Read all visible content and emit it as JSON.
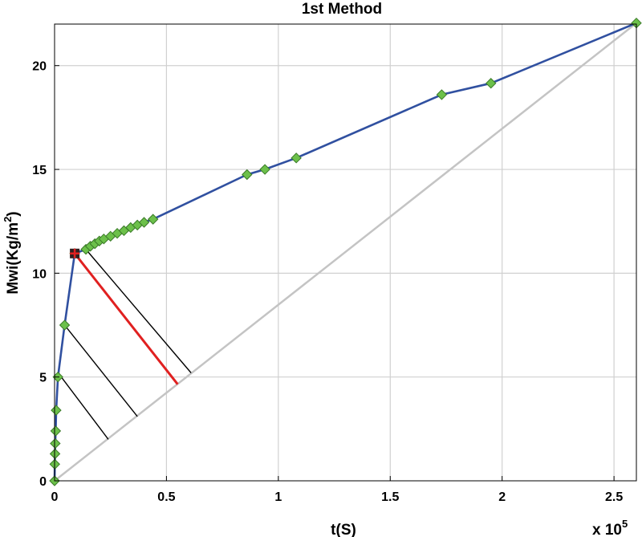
{
  "chart_data": {
    "type": "line",
    "title": "1st Method",
    "xlabel": "t(S)",
    "ylabel_main": "Mwi(Kg/m",
    "ylabel_sup": "2",
    "ylabel_end": ")",
    "x_multiplier_base": "x 10",
    "x_multiplier_exp": "5",
    "xlim": [
      0,
      2.6
    ],
    "ylim": [
      0,
      22
    ],
    "xticks": [
      0,
      0.5,
      1,
      1.5,
      2,
      2.5
    ],
    "xtick_labels": [
      "0",
      "0.5",
      "1",
      "1.5",
      "2",
      "2.5"
    ],
    "yticks": [
      0,
      5,
      10,
      15,
      20
    ],
    "ytick_labels": [
      "0",
      "5",
      "10",
      "15",
      "20"
    ],
    "grid": true,
    "colors": {
      "curve": "#3050a0",
      "marker_fill": "#6cc04a",
      "marker_edge": "#3a7a28",
      "diagonal": "#c4c4c4",
      "highlight": "#e02020",
      "projection": "#000000",
      "grid": "#d0d0d0"
    },
    "series": [
      {
        "values": [
          [
            0,
            0
          ],
          [
            0.001,
            0.8
          ],
          [
            0.002,
            1.3
          ],
          [
            0.003,
            1.8
          ],
          [
            0.005,
            2.4
          ],
          [
            0.007,
            3.4
          ],
          [
            0.015,
            5.0
          ],
          [
            0.045,
            7.5
          ],
          [
            0.09,
            10.95
          ],
          [
            0.14,
            11.15
          ],
          [
            0.16,
            11.3
          ],
          [
            0.18,
            11.42
          ],
          [
            0.2,
            11.55
          ],
          [
            0.22,
            11.65
          ],
          [
            0.25,
            11.78
          ],
          [
            0.28,
            11.92
          ],
          [
            0.31,
            12.05
          ],
          [
            0.34,
            12.2
          ],
          [
            0.37,
            12.32
          ],
          [
            0.4,
            12.45
          ],
          [
            0.44,
            12.6
          ],
          [
            0.86,
            14.75
          ],
          [
            0.94,
            15.0
          ],
          [
            1.08,
            15.55
          ],
          [
            1.73,
            18.6
          ],
          [
            1.95,
            19.15
          ],
          [
            2.6,
            22.05
          ]
        ]
      }
    ],
    "diagonal": [
      [
        0,
        0
      ],
      [
        2.6,
        22.05
      ]
    ],
    "highlight_point": [
      0.09,
      10.95
    ],
    "highlight_line": [
      [
        0.09,
        10.95
      ],
      [
        0.55,
        4.65
      ]
    ],
    "projection_lines": [
      [
        [
          0.03,
          5.0
        ],
        [
          0.24,
          2.0
        ]
      ],
      [
        [
          0.045,
          7.5
        ],
        [
          0.37,
          3.1
        ]
      ],
      [
        [
          0.14,
          11.15
        ],
        [
          0.61,
          5.2
        ]
      ]
    ]
  }
}
